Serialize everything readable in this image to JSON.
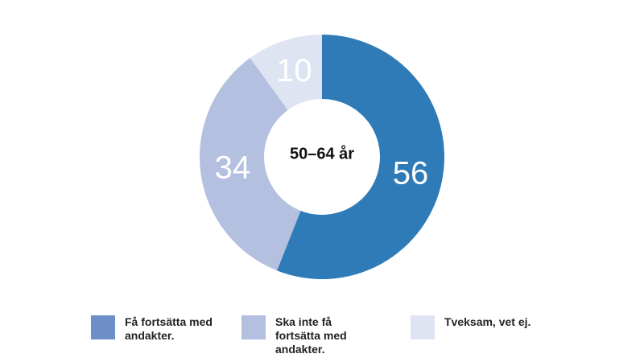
{
  "chart_data": {
    "type": "donut",
    "center_label": "50–64 år",
    "categories": [
      "Få fortsätta med andakter.",
      "Ska  inte få fortsätta med andakter.",
      "Tveksam, vet ej."
    ],
    "values": [
      56,
      34,
      10
    ],
    "colors": [
      "#2e7bb7",
      "#b3c0df",
      "#dfe4f3"
    ],
    "legend_colors": [
      "#6d8ec6",
      "#b3c0df",
      "#dfe4f3"
    ]
  }
}
